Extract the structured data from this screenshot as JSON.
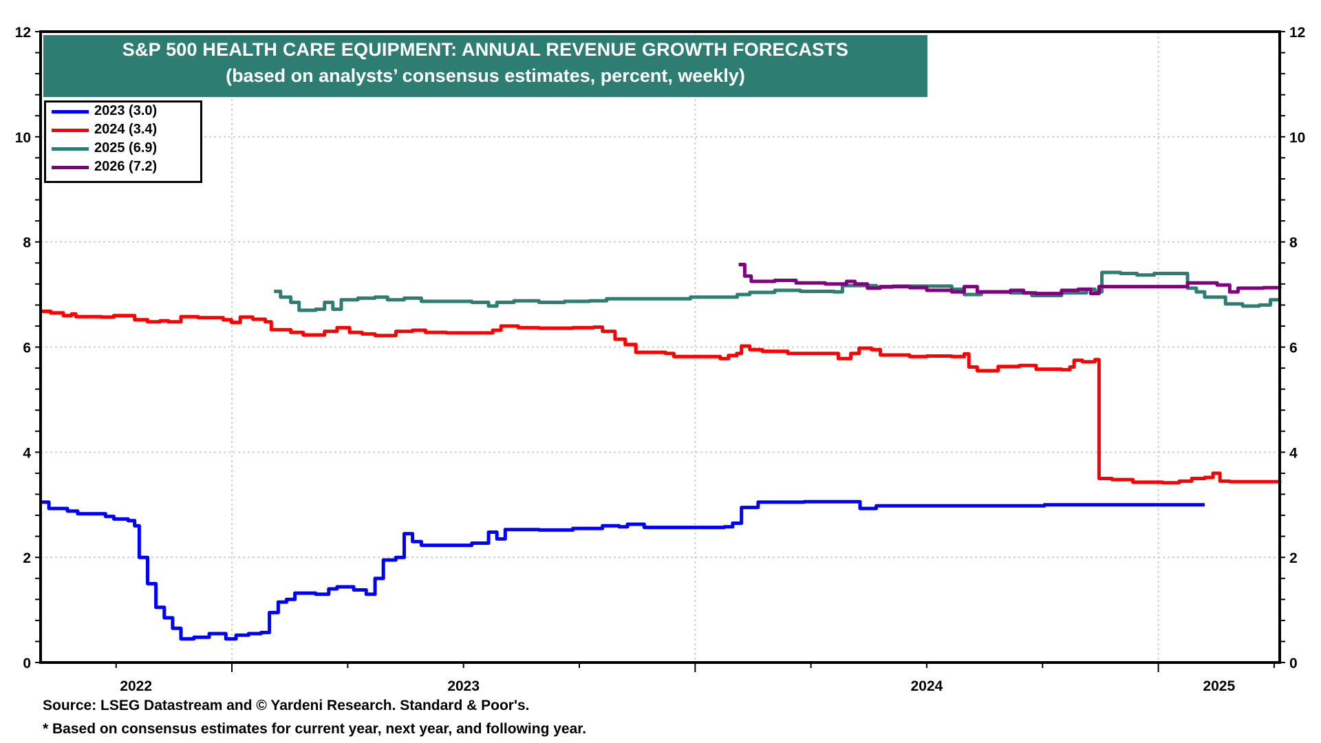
{
  "title": {
    "line1": "S&P 500 HEALTH CARE EQUIPMENT: ANNUAL REVENUE GROWTH FORECASTS",
    "line2": "(based on analysts’ consensus estimates, percent, weekly)"
  },
  "footer": {
    "source": "Source: LSEG Datastream and © Yardeni Research. Standard & Poor's.",
    "note": "* Based on consensus estimates for current year, next year, and following year."
  },
  "colors": {
    "title_band": "#2e7d72"
  },
  "chart_data": {
    "type": "line",
    "title": "S&P 500 HEALTH CARE EQUIPMENT: ANNUAL REVENUE GROWTH FORECASTS",
    "subtitle": "(based on analysts’ consensus estimates, percent, weekly)",
    "xlabel": "",
    "ylabel": "",
    "x_unit": "decimal year",
    "xlim": [
      2022.587,
      2025.262
    ],
    "ylim": [
      0,
      12
    ],
    "yticks": [
      0,
      2,
      4,
      6,
      8,
      10,
      12
    ],
    "ytick_labels": [
      "0",
      "2",
      "4",
      "6",
      "8",
      "10",
      "12"
    ],
    "y_axis_both_sides": true,
    "xtick_labels": [
      {
        "label": "2022",
        "x": 2022.793
      },
      {
        "label": "2023",
        "x": 2023.5
      },
      {
        "label": "2024",
        "x": 2024.5
      },
      {
        "label": "2025",
        "x": 2025.131
      }
    ],
    "year_gridlines": [
      2023,
      2024,
      2025
    ],
    "grid": true,
    "legend_position": "top-left",
    "series": [
      {
        "name": "2023 (3.0)",
        "color": "#0000ff",
        "points": [
          [
            2022.587,
            3.05
          ],
          [
            2022.605,
            2.93
          ],
          [
            2022.645,
            2.88
          ],
          [
            2022.667,
            2.83
          ],
          [
            2022.727,
            2.78
          ],
          [
            2022.745,
            2.73
          ],
          [
            2022.776,
            2.7
          ],
          [
            2022.79,
            2.6
          ],
          [
            2022.8,
            2.0
          ],
          [
            2022.818,
            1.5
          ],
          [
            2022.836,
            1.05
          ],
          [
            2022.854,
            0.85
          ],
          [
            2022.872,
            0.65
          ],
          [
            2022.89,
            0.45
          ],
          [
            2022.918,
            0.48
          ],
          [
            2022.951,
            0.55
          ],
          [
            2022.987,
            0.45
          ],
          [
            2023.009,
            0.52
          ],
          [
            2023.036,
            0.55
          ],
          [
            2023.063,
            0.57
          ],
          [
            2023.081,
            0.95
          ],
          [
            2023.1,
            1.15
          ],
          [
            2023.118,
            1.2
          ],
          [
            2023.136,
            1.32
          ],
          [
            2023.181,
            1.3
          ],
          [
            2023.209,
            1.4
          ],
          [
            2023.227,
            1.44
          ],
          [
            2023.263,
            1.38
          ],
          [
            2023.29,
            1.3
          ],
          [
            2023.309,
            1.6
          ],
          [
            2023.327,
            1.95
          ],
          [
            2023.354,
            2.0
          ],
          [
            2023.372,
            2.45
          ],
          [
            2023.39,
            2.3
          ],
          [
            2023.409,
            2.23
          ],
          [
            2023.481,
            2.23
          ],
          [
            2023.518,
            2.27
          ],
          [
            2023.554,
            2.48
          ],
          [
            2023.572,
            2.35
          ],
          [
            2023.59,
            2.53
          ],
          [
            2023.627,
            2.53
          ],
          [
            2023.663,
            2.52
          ],
          [
            2023.736,
            2.55
          ],
          [
            2023.781,
            2.55
          ],
          [
            2023.8,
            2.6
          ],
          [
            2023.836,
            2.58
          ],
          [
            2023.854,
            2.63
          ],
          [
            2023.89,
            2.57
          ],
          [
            2023.99,
            2.57
          ],
          [
            2024.063,
            2.58
          ],
          [
            2024.081,
            2.65
          ],
          [
            2024.1,
            2.95
          ],
          [
            2024.136,
            3.05
          ],
          [
            2024.236,
            3.06
          ],
          [
            2024.354,
            3.06
          ],
          [
            2024.356,
            2.93
          ],
          [
            2024.391,
            2.98
          ],
          [
            2024.754,
            3.0
          ],
          [
            2025.1,
            3.0
          ]
        ]
      },
      {
        "name": "2024 (3.4)",
        "color": "#ff0000",
        "points": [
          [
            2022.587,
            6.68
          ],
          [
            2022.609,
            6.65
          ],
          [
            2022.636,
            6.6
          ],
          [
            2022.654,
            6.63
          ],
          [
            2022.663,
            6.58
          ],
          [
            2022.718,
            6.57
          ],
          [
            2022.745,
            6.6
          ],
          [
            2022.79,
            6.52
          ],
          [
            2022.818,
            6.48
          ],
          [
            2022.845,
            6.5
          ],
          [
            2022.863,
            6.48
          ],
          [
            2022.89,
            6.58
          ],
          [
            2022.927,
            6.56
          ],
          [
            2022.981,
            6.52
          ],
          [
            2022.999,
            6.47
          ],
          [
            2023.018,
            6.57
          ],
          [
            2023.045,
            6.53
          ],
          [
            2023.072,
            6.48
          ],
          [
            2023.085,
            6.33
          ],
          [
            2023.127,
            6.28
          ],
          [
            2023.154,
            6.23
          ],
          [
            2023.2,
            6.3
          ],
          [
            2023.227,
            6.37
          ],
          [
            2023.254,
            6.28
          ],
          [
            2023.281,
            6.25
          ],
          [
            2023.309,
            6.22
          ],
          [
            2023.354,
            6.3
          ],
          [
            2023.39,
            6.32
          ],
          [
            2023.418,
            6.28
          ],
          [
            2023.463,
            6.27
          ],
          [
            2023.536,
            6.27
          ],
          [
            2023.563,
            6.32
          ],
          [
            2023.581,
            6.4
          ],
          [
            2023.618,
            6.37
          ],
          [
            2023.663,
            6.36
          ],
          [
            2023.736,
            6.37
          ],
          [
            2023.781,
            6.38
          ],
          [
            2023.8,
            6.3
          ],
          [
            2023.827,
            6.15
          ],
          [
            2023.849,
            6.05
          ],
          [
            2023.872,
            5.9
          ],
          [
            2023.936,
            5.88
          ],
          [
            2023.954,
            5.82
          ],
          [
            2024.027,
            5.82
          ],
          [
            2024.054,
            5.78
          ],
          [
            2024.072,
            5.84
          ],
          [
            2024.09,
            5.88
          ],
          [
            2024.1,
            6.02
          ],
          [
            2024.118,
            5.95
          ],
          [
            2024.145,
            5.92
          ],
          [
            2024.2,
            5.88
          ],
          [
            2024.29,
            5.88
          ],
          [
            2024.309,
            5.78
          ],
          [
            2024.336,
            5.88
          ],
          [
            2024.354,
            5.98
          ],
          [
            2024.381,
            5.95
          ],
          [
            2024.4,
            5.85
          ],
          [
            2024.463,
            5.82
          ],
          [
            2024.5,
            5.83
          ],
          [
            2024.554,
            5.82
          ],
          [
            2024.581,
            5.87
          ],
          [
            2024.591,
            5.62
          ],
          [
            2024.609,
            5.55
          ],
          [
            2024.636,
            5.55
          ],
          [
            2024.654,
            5.63
          ],
          [
            2024.7,
            5.65
          ],
          [
            2024.736,
            5.58
          ],
          [
            2024.791,
            5.57
          ],
          [
            2024.809,
            5.62
          ],
          [
            2024.818,
            5.75
          ],
          [
            2024.836,
            5.72
          ],
          [
            2024.863,
            5.76
          ],
          [
            2024.872,
            3.5
          ],
          [
            2024.9,
            3.48
          ],
          [
            2024.945,
            3.43
          ],
          [
            2025.009,
            3.42
          ],
          [
            2025.045,
            3.45
          ],
          [
            2025.072,
            3.5
          ],
          [
            2025.1,
            3.52
          ],
          [
            2025.118,
            3.6
          ],
          [
            2025.133,
            3.45
          ],
          [
            2025.154,
            3.44
          ],
          [
            2025.262,
            3.43
          ]
        ]
      },
      {
        "name": "2025 (6.9)",
        "color": "#2e7d72",
        "points": [
          [
            2023.091,
            7.06
          ],
          [
            2023.105,
            6.95
          ],
          [
            2023.127,
            6.85
          ],
          [
            2023.145,
            6.7
          ],
          [
            2023.181,
            6.72
          ],
          [
            2023.2,
            6.85
          ],
          [
            2023.218,
            6.72
          ],
          [
            2023.236,
            6.9
          ],
          [
            2023.272,
            6.93
          ],
          [
            2023.309,
            6.95
          ],
          [
            2023.336,
            6.9
          ],
          [
            2023.372,
            6.93
          ],
          [
            2023.409,
            6.87
          ],
          [
            2023.445,
            6.87
          ],
          [
            2023.518,
            6.85
          ],
          [
            2023.554,
            6.78
          ],
          [
            2023.572,
            6.85
          ],
          [
            2023.609,
            6.88
          ],
          [
            2023.663,
            6.85
          ],
          [
            2023.718,
            6.87
          ],
          [
            2023.772,
            6.88
          ],
          [
            2023.809,
            6.92
          ],
          [
            2023.881,
            6.92
          ],
          [
            2023.99,
            6.95
          ],
          [
            2024.063,
            6.95
          ],
          [
            2024.091,
            7.0
          ],
          [
            2024.118,
            7.04
          ],
          [
            2024.172,
            7.08
          ],
          [
            2024.227,
            7.06
          ],
          [
            2024.3,
            7.05
          ],
          [
            2024.318,
            7.17
          ],
          [
            2024.391,
            7.14
          ],
          [
            2024.427,
            7.16
          ],
          [
            2024.554,
            7.1
          ],
          [
            2024.581,
            7.0
          ],
          [
            2024.618,
            7.05
          ],
          [
            2024.681,
            7.03
          ],
          [
            2024.727,
            6.98
          ],
          [
            2024.791,
            7.03
          ],
          [
            2024.845,
            7.1
          ],
          [
            2024.863,
            7.05
          ],
          [
            2024.878,
            7.42
          ],
          [
            2024.918,
            7.4
          ],
          [
            2024.954,
            7.37
          ],
          [
            2024.991,
            7.4
          ],
          [
            2025.036,
            7.4
          ],
          [
            2025.063,
            7.12
          ],
          [
            2025.082,
            7.05
          ],
          [
            2025.1,
            6.95
          ],
          [
            2025.145,
            6.82
          ],
          [
            2025.182,
            6.78
          ],
          [
            2025.218,
            6.8
          ],
          [
            2025.242,
            6.9
          ],
          [
            2025.262,
            6.9
          ]
        ]
      },
      {
        "name": "2026 (7.2)",
        "color": "#800080",
        "points": [
          [
            2024.094,
            7.57
          ],
          [
            2024.107,
            7.35
          ],
          [
            2024.121,
            7.25
          ],
          [
            2024.172,
            7.27
          ],
          [
            2024.218,
            7.22
          ],
          [
            2024.281,
            7.2
          ],
          [
            2024.327,
            7.25
          ],
          [
            2024.345,
            7.2
          ],
          [
            2024.372,
            7.12
          ],
          [
            2024.4,
            7.15
          ],
          [
            2024.463,
            7.13
          ],
          [
            2024.5,
            7.08
          ],
          [
            2024.554,
            7.05
          ],
          [
            2024.581,
            7.15
          ],
          [
            2024.609,
            7.05
          ],
          [
            2024.681,
            7.08
          ],
          [
            2024.709,
            7.03
          ],
          [
            2024.736,
            7.02
          ],
          [
            2024.791,
            7.08
          ],
          [
            2024.827,
            7.1
          ],
          [
            2024.854,
            7.02
          ],
          [
            2024.872,
            7.15
          ],
          [
            2024.972,
            7.15
          ],
          [
            2025.045,
            7.15
          ],
          [
            2025.063,
            7.22
          ],
          [
            2025.127,
            7.18
          ],
          [
            2025.154,
            7.05
          ],
          [
            2025.172,
            7.12
          ],
          [
            2025.227,
            7.13
          ],
          [
            2025.262,
            7.16
          ]
        ]
      }
    ]
  }
}
